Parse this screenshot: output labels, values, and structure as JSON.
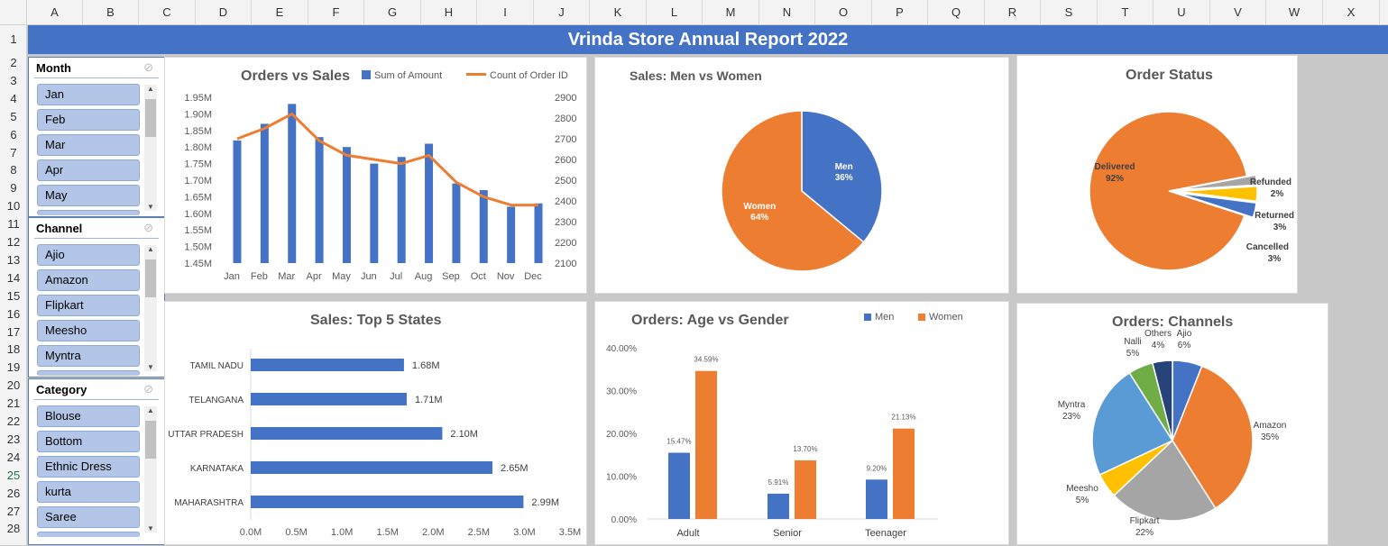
{
  "columns": [
    "A",
    "B",
    "C",
    "D",
    "E",
    "F",
    "G",
    "H",
    "I",
    "J",
    "K",
    "L",
    "M",
    "N",
    "O",
    "P",
    "Q",
    "R",
    "S",
    "T",
    "U",
    "V",
    "W",
    "X"
  ],
  "rows": [
    "1",
    "2",
    "3",
    "4",
    "5",
    "6",
    "7",
    "8",
    "9",
    "10",
    "11",
    "12",
    "13",
    "14",
    "15",
    "16",
    "17",
    "18",
    "19",
    "20",
    "21",
    "22",
    "23",
    "24",
    "25",
    "26",
    "27",
    "28"
  ],
  "selected_row": "25",
  "report_title": "Vrinda Store Annual Report 2022",
  "slicers": {
    "month": {
      "header": "Month",
      "items": [
        "Jan",
        "Feb",
        "Mar",
        "Apr",
        "May"
      ]
    },
    "channel": {
      "header": "Channel",
      "items": [
        "Ajio",
        "Amazon",
        "Flipkart",
        "Meesho",
        "Myntra"
      ]
    },
    "category": {
      "header": "Category",
      "items": [
        "Blouse",
        "Bottom",
        "Ethnic Dress",
        "kurta",
        "Saree"
      ]
    }
  },
  "colors": {
    "blue": "#4472c4",
    "orange": "#ed7d31",
    "gray": "#a5a5a5",
    "yellow": "#ffc000",
    "lightblue": "#5b9bd5",
    "green": "#70ad47",
    "navy": "#264478"
  },
  "chart_data": [
    {
      "type": "bar",
      "title": "Orders vs Sales",
      "categories": [
        "Jan",
        "Feb",
        "Mar",
        "Apr",
        "May",
        "Jun",
        "Jul",
        "Aug",
        "Sep",
        "Oct",
        "Nov",
        "Dec"
      ],
      "series": [
        {
          "name": "Sum of Amount",
          "type": "bar",
          "axis": "left",
          "values": [
            1.82,
            1.87,
            1.93,
            1.83,
            1.8,
            1.75,
            1.77,
            1.81,
            1.69,
            1.67,
            1.62,
            1.63
          ]
        },
        {
          "name": "Count of Order ID",
          "type": "line",
          "axis": "right",
          "values": [
            2700,
            2750,
            2820,
            2690,
            2620,
            2600,
            2580,
            2620,
            2490,
            2420,
            2380,
            2380
          ]
        }
      ],
      "y_left": {
        "min": 1.45,
        "max": 1.95,
        "ticks": [
          "1.95M",
          "1.90M",
          "1.85M",
          "1.80M",
          "1.75M",
          "1.70M",
          "1.65M",
          "1.60M",
          "1.55M",
          "1.50M",
          "1.45M"
        ]
      },
      "y_right": {
        "min": 2100,
        "max": 2900,
        "ticks": [
          "2900",
          "2800",
          "2700",
          "2600",
          "2500",
          "2400",
          "2300",
          "2200",
          "2100"
        ]
      }
    },
    {
      "type": "pie",
      "title": "Sales: Men vs Women",
      "slices": [
        {
          "name": "Men",
          "value": 36,
          "label": "36%",
          "color": "#4472c4"
        },
        {
          "name": "Women",
          "value": 64,
          "label": "64%",
          "color": "#ed7d31"
        }
      ]
    },
    {
      "type": "pie",
      "title": "Order Status",
      "slices": [
        {
          "name": "Delivered",
          "value": 92,
          "label": "92%",
          "color": "#ed7d31"
        },
        {
          "name": "Refunded",
          "value": 2,
          "label": "2%",
          "color": "#a5a5a5"
        },
        {
          "name": "Returned",
          "value": 3,
          "label": "3%",
          "color": "#ffc000"
        },
        {
          "name": "Cancelled",
          "value": 3,
          "label": "3%",
          "color": "#4472c4"
        }
      ]
    },
    {
      "type": "bar",
      "orientation": "horizontal",
      "title": "Sales: Top 5 States",
      "categories": [
        "TAMIL NADU",
        "TELANGANA",
        "UTTAR PRADESH",
        "KARNATAKA",
        "MAHARASHTRA"
      ],
      "values": [
        1.68,
        1.71,
        2.1,
        2.65,
        2.99
      ],
      "labels": [
        "1.68M",
        "1.71M",
        "2.10M",
        "2.65M",
        "2.99M"
      ],
      "x_ticks": [
        "0.0M",
        "0.5M",
        "1.0M",
        "1.5M",
        "2.0M",
        "2.5M",
        "3.0M",
        "3.5M"
      ],
      "xlim": [
        0,
        3.5
      ]
    },
    {
      "type": "bar",
      "title": "Orders: Age vs Gender",
      "categories": [
        "Adult",
        "Senior",
        "Teenager"
      ],
      "series": [
        {
          "name": "Men",
          "values": [
            15.47,
            5.91,
            9.2
          ],
          "labels": [
            "15.47%",
            "5.91%",
            "9.20%"
          ]
        },
        {
          "name": "Women",
          "values": [
            34.59,
            13.7,
            21.13
          ],
          "labels": [
            "34.59%",
            "13.70%",
            "21.13%"
          ]
        }
      ],
      "y_ticks": [
        "40.00%",
        "30.00%",
        "20.00%",
        "10.00%",
        "0.00%"
      ],
      "ylim": [
        0,
        40
      ]
    },
    {
      "type": "pie",
      "title": "Orders: Channels",
      "slices": [
        {
          "name": "Ajio",
          "value": 6,
          "label": "6%",
          "color": "#4472c4"
        },
        {
          "name": "Amazon",
          "value": 35,
          "label": "35%",
          "color": "#ed7d31"
        },
        {
          "name": "Flipkart",
          "value": 22,
          "label": "22%",
          "color": "#a5a5a5"
        },
        {
          "name": "Meesho",
          "value": 5,
          "label": "5%",
          "color": "#ffc000"
        },
        {
          "name": "Myntra",
          "value": 23,
          "label": "23%",
          "color": "#5b9bd5"
        },
        {
          "name": "Nalli",
          "value": 5,
          "label": "5%",
          "color": "#70ad47"
        },
        {
          "name": "Others",
          "value": 4,
          "label": "4%",
          "color": "#264478"
        }
      ]
    }
  ]
}
